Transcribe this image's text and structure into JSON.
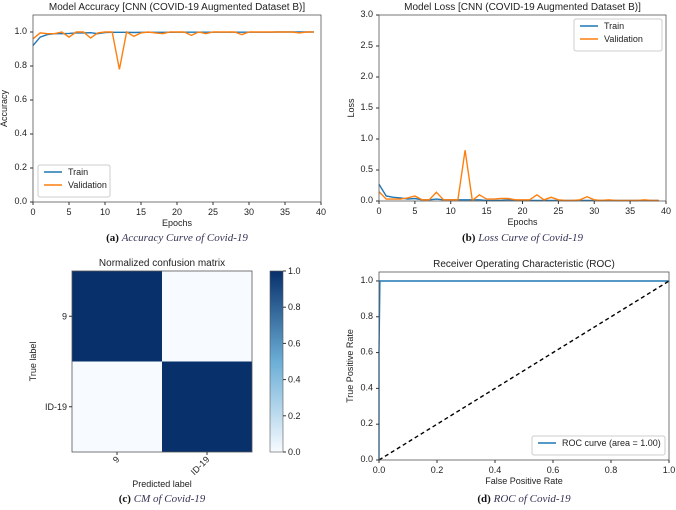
{
  "colors": {
    "train": "#1f77b4",
    "validation": "#ff7f0e",
    "cm_dark": "#08306b",
    "cm_light": "#f7fbff",
    "diag": "#000000"
  },
  "chart_data": [
    {
      "id": "acc",
      "type": "line",
      "title": "Model Accuracy [CNN (COVID-19 Augmented Dataset B)]",
      "xlabel": "Epochs",
      "ylabel": "Accuracy",
      "xlim": [
        0,
        40
      ],
      "ylim": [
        0,
        1.1
      ],
      "xticks": [
        0,
        5,
        10,
        15,
        20,
        25,
        30,
        35,
        40
      ],
      "yticks": [
        0.0,
        0.2,
        0.4,
        0.6,
        0.8,
        1.0
      ],
      "ytick_fmt": 1,
      "legend": "lower-left",
      "caption_letter": "(a)",
      "caption": "Accuracy Curve of Covid-19",
      "series": [
        {
          "name": "Train",
          "color_key": "train",
          "values": [
            0.92,
            0.97,
            0.985,
            0.99,
            0.99,
            0.992,
            0.995,
            0.995,
            0.996,
            0.99,
            0.997,
            0.998,
            0.998,
            0.998,
            0.997,
            0.998,
            0.998,
            0.998,
            0.998,
            0.998,
            0.999,
            0.999,
            0.999,
            0.999,
            0.999,
            0.999,
            0.999,
            0.999,
            0.999,
            0.999,
            0.999,
            0.999,
            0.999,
            0.999,
            1.0,
            1.0,
            1.0,
            1.0,
            1.0,
            1.0
          ]
        },
        {
          "name": "Validation",
          "color_key": "validation",
          "values": [
            0.96,
            0.995,
            0.99,
            0.99,
            1.0,
            0.97,
            1.0,
            1.0,
            0.965,
            0.995,
            1.0,
            1.0,
            0.78,
            1.0,
            0.975,
            0.995,
            1.0,
            0.995,
            0.99,
            1.0,
            1.0,
            1.0,
            0.98,
            1.0,
            0.99,
            1.0,
            1.0,
            1.0,
            1.0,
            0.985,
            1.0,
            1.0,
            1.0,
            1.0,
            1.0,
            1.0,
            1.0,
            0.995,
            1.0,
            1.0
          ]
        }
      ]
    },
    {
      "id": "loss",
      "type": "line",
      "title": "Model Loss [CNN (COVID-19 Augmented Dataset B)]",
      "xlabel": "Epochs",
      "ylabel": "Loss",
      "xlim": [
        0,
        40
      ],
      "ylim": [
        0,
        3.0
      ],
      "xticks": [
        0,
        5,
        10,
        15,
        20,
        25,
        30,
        35,
        40
      ],
      "yticks": [
        0.0,
        0.5,
        1.0,
        1.5,
        2.0,
        2.5,
        3.0
      ],
      "ytick_fmt": 1,
      "legend": "upper-right",
      "caption_letter": "(b)",
      "caption": "Loss Curve of Covid-19",
      "series": [
        {
          "name": "Train",
          "color_key": "train",
          "values": [
            0.27,
            0.08,
            0.06,
            0.05,
            0.03,
            0.04,
            0.02,
            0.02,
            0.03,
            0.02,
            0.02,
            0.02,
            0.02,
            0.02,
            0.02,
            0.01,
            0.01,
            0.01,
            0.02,
            0.01,
            0.01,
            0.01,
            0.01,
            0.01,
            0.01,
            0.01,
            0.01,
            0.01,
            0.01,
            0.01,
            0.01,
            0.01,
            0.01,
            0.01,
            0.01,
            0.01,
            0.01,
            0.01,
            0.01,
            0.01
          ]
        },
        {
          "name": "Validation",
          "color_key": "validation",
          "values": [
            0.15,
            0.03,
            0.03,
            0.03,
            0.05,
            0.08,
            0.02,
            0.02,
            0.14,
            0.02,
            0.02,
            0.02,
            0.82,
            0.01,
            0.1,
            0.03,
            0.03,
            0.04,
            0.04,
            0.02,
            0.02,
            0.02,
            0.1,
            0.02,
            0.06,
            0.02,
            0.01,
            0.01,
            0.02,
            0.07,
            0.02,
            0.01,
            0.02,
            0.01,
            0.01,
            0.01,
            0.01,
            0.02,
            0.01,
            0.01
          ]
        }
      ]
    },
    {
      "id": "cm",
      "type": "heatmap",
      "title": "Normalized confusion matrix",
      "xlabel": "Predicted label",
      "ylabel": "True label",
      "row_labels": [
        "9",
        "ID-19"
      ],
      "col_labels": [
        "9",
        "ID-19"
      ],
      "values": [
        [
          1.0,
          0.0
        ],
        [
          0.0,
          1.0
        ]
      ],
      "colorbar_ticks": [
        0.0,
        0.2,
        0.4,
        0.6,
        0.8,
        1.0
      ],
      "caption_letter": "(c)",
      "caption": "CM of Covid-19"
    },
    {
      "id": "roc",
      "type": "line",
      "title": "Receiver Operating Characteristic (ROC)",
      "xlabel": "False Positive Rate",
      "ylabel": "True Positive Rate",
      "xlim": [
        0,
        1
      ],
      "ylim": [
        0,
        1.05
      ],
      "xticks": [
        0.0,
        0.2,
        0.4,
        0.6,
        0.8,
        1.0
      ],
      "yticks": [
        0.0,
        0.2,
        0.4,
        0.6,
        0.8,
        1.0
      ],
      "ytick_fmt": 1,
      "xtick_fmt": 1,
      "legend": "lower-right",
      "caption_letter": "(d)",
      "caption": "ROC of Covid-19",
      "series": [
        {
          "name": "ROC curve (area = 1.00)",
          "color_key": "train",
          "x": [
            0,
            0,
            0.003,
            1
          ],
          "y": [
            0,
            0.6,
            1.0,
            1.0
          ]
        },
        {
          "name": "chance",
          "color_key": "diag",
          "dashed": true,
          "nolegend": true,
          "x": [
            0,
            1
          ],
          "y": [
            0,
            1
          ]
        }
      ]
    }
  ]
}
